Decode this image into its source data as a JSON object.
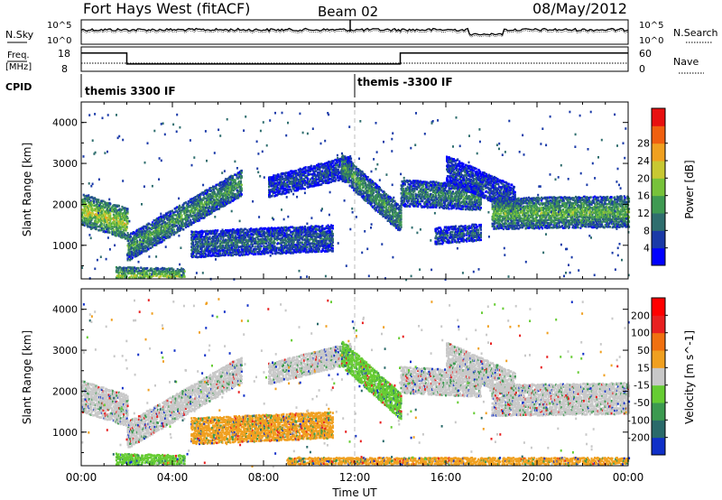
{
  "header": {
    "station": "Fort Hays West (fitACF)",
    "beam": "Beam 02",
    "date": "08/May/2012"
  },
  "top_panel": {
    "left_label": "N.Sky",
    "right_label": "N.Search",
    "left_ticks": [
      "10^5",
      "10^0"
    ],
    "right_ticks": [
      "10^5",
      "10^0"
    ]
  },
  "freq_panel": {
    "left_label_1": "Freq.",
    "left_label_2": "[MHz]",
    "right_label": "Nave",
    "left_ticks": [
      "18",
      "8"
    ],
    "right_ticks": [
      "60",
      "0"
    ],
    "freq_mhz": [
      {
        "t0": 0,
        "t1": 2,
        "v": 15.5
      },
      {
        "t0": 2,
        "t1": 14,
        "v": 11.0
      },
      {
        "t0": 14,
        "t1": 24,
        "v": 15.5
      }
    ],
    "nave": [
      {
        "t0": 0,
        "t1": 2,
        "v": 20
      },
      {
        "t0": 2,
        "t1": 14,
        "v": 20
      },
      {
        "t0": 14,
        "t1": 24,
        "v": 20
      }
    ]
  },
  "cpid": {
    "label": "CPID",
    "segments": [
      {
        "start_hour": 0,
        "text": "themis 3300 IF"
      },
      {
        "start_hour": 12,
        "text": "themis -3300 IF"
      }
    ]
  },
  "chart_data": [
    {
      "type": "heatmap",
      "parameter": "Power",
      "ylabel": "Slant Range [km]",
      "xlabel": "",
      "ylim": [
        180,
        4500
      ],
      "xlim": [
        0,
        24
      ],
      "y_ticks": [
        "1000",
        "2000",
        "3000",
        "4000"
      ],
      "colorbar": {
        "label": "Power [dB]",
        "ticks": [
          "4",
          "8",
          "12",
          "16",
          "20",
          "24",
          "28"
        ],
        "range": [
          0,
          30
        ],
        "colors": [
          "#0000ff",
          "#1a3aa8",
          "#2f6e6e",
          "#3f9a52",
          "#77c23a",
          "#c8c832",
          "#f0a020",
          "#f06010",
          "#e81010"
        ]
      },
      "bands": [
        {
          "t0": 0.0,
          "t1": 2.0,
          "r0": 1900,
          "r1": 1550,
          "w": 320,
          "level": 18
        },
        {
          "t0": 2.0,
          "t1": 7.0,
          "r0": 950,
          "r1": 2550,
          "w": 280,
          "level": 12
        },
        {
          "t0": 4.8,
          "t1": 11.0,
          "r0": 1050,
          "r1": 1200,
          "w": 300,
          "level": 8
        },
        {
          "t0": 8.2,
          "t1": 11.8,
          "r0": 2450,
          "r1": 2950,
          "w": 230,
          "level": 6
        },
        {
          "t0": 11.4,
          "t1": 14.0,
          "r0": 2950,
          "r1": 1650,
          "w": 260,
          "level": 12
        },
        {
          "t0": 14.0,
          "t1": 17.5,
          "r0": 2300,
          "r1": 2200,
          "w": 250,
          "level": 10
        },
        {
          "t0": 16.0,
          "t1": 19.0,
          "r0": 2900,
          "r1": 2150,
          "w": 280,
          "level": 6
        },
        {
          "t0": 18.0,
          "t1": 24.0,
          "r0": 1800,
          "r1": 1850,
          "w": 320,
          "level": 14
        },
        {
          "t0": 15.5,
          "t1": 17.5,
          "r0": 1250,
          "r1": 1350,
          "w": 180,
          "level": 7
        },
        {
          "t0": 1.5,
          "t1": 4.5,
          "r0": 300,
          "r1": 260,
          "w": 130,
          "level": 15
        }
      ]
    },
    {
      "type": "heatmap",
      "parameter": "Velocity",
      "ylabel": "Slant Range [km]",
      "xlabel": "Time UT",
      "ylim": [
        180,
        4500
      ],
      "xlim": [
        0,
        24
      ],
      "y_ticks": [
        "1000",
        "2000",
        "3000",
        "4000"
      ],
      "x_ticks": [
        "00:00",
        "04:00",
        "08:00",
        "12:00",
        "16:00",
        "20:00",
        "00:00"
      ],
      "colorbar": {
        "label": "Velocity [m s^-1]",
        "ticks": [
          "200",
          "100",
          "50",
          "15",
          "-15",
          "-50",
          "-100",
          "-200"
        ],
        "colors": [
          "#1030c8",
          "#2a6a6a",
          "#3c9a50",
          "#66cc33",
          "#c8c8c8",
          "#f0a020",
          "#f07010",
          "#e82020",
          "#ff0000"
        ]
      },
      "bands": [
        {
          "t0": 0.0,
          "t1": 2.0,
          "r0": 1900,
          "r1": 1550,
          "w": 320,
          "vel": "-15to15"
        },
        {
          "t0": 2.0,
          "t1": 7.0,
          "r0": 950,
          "r1": 2550,
          "w": 280,
          "vel": "-15to15"
        },
        {
          "t0": 4.8,
          "t1": 11.0,
          "r0": 1050,
          "r1": 1200,
          "w": 300,
          "vel": "-50to-15"
        },
        {
          "t0": 8.2,
          "t1": 11.8,
          "r0": 2450,
          "r1": 2950,
          "w": 230,
          "vel": "-15to15"
        },
        {
          "t0": 11.4,
          "t1": 14.0,
          "r0": 2950,
          "r1": 1650,
          "w": 260,
          "vel": "15to50"
        },
        {
          "t0": 14.0,
          "t1": 17.5,
          "r0": 2300,
          "r1": 2200,
          "w": 250,
          "vel": "-15to15"
        },
        {
          "t0": 16.0,
          "t1": 19.0,
          "r0": 2900,
          "r1": 2150,
          "w": 280,
          "vel": "-15to15"
        },
        {
          "t0": 18.0,
          "t1": 24.0,
          "r0": 1800,
          "r1": 1850,
          "w": 320,
          "vel": "-15to15"
        },
        {
          "t0": 1.5,
          "t1": 4.5,
          "r0": 300,
          "r1": 260,
          "w": 130,
          "vel": "15to50"
        },
        {
          "t0": 9.0,
          "t1": 24.0,
          "r0": 260,
          "r1": 260,
          "w": 120,
          "vel": "-50to-15"
        }
      ]
    }
  ]
}
